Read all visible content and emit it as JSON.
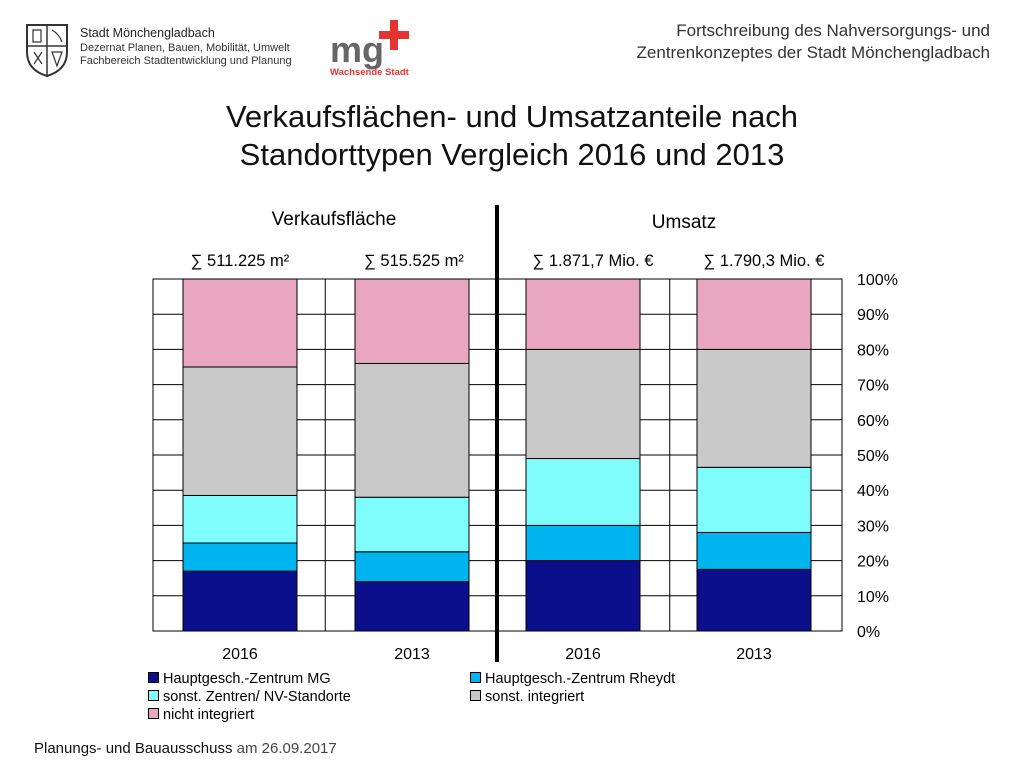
{
  "header": {
    "org_name": "Stadt Mönchengladbach",
    "org_dept": "Dezernat Planen, Bauen, Mobilität, Umwelt",
    "org_division": "Fachbereich Stadtentwicklung und Planung",
    "logo_text": "mg",
    "logo_tagline": "Wachsende Stadt",
    "right_line1": "Fortschreibung des Nahversorgungs- und",
    "right_line2": "Zentrenkonzeptes der Stadt Mönchengladbach"
  },
  "slide_title_line1": "Verkaufsflächen- und Umsatzanteile nach",
  "slide_title_line2": "Standorttypen Vergleich 2016 und 2013",
  "footer": {
    "label": "Planungs- und Bauausschuss",
    "date": "am 26.09.2017"
  },
  "colors": {
    "hauptgesch_mg": "#0c0f8c",
    "hauptgesch_rheydt": "#00b4f0",
    "sonst_zentren": "#7ffcfc",
    "sonst_integriert": "#c8c8c8",
    "nicht_integriert": "#e8a6c0",
    "logo_red": "#e3342f",
    "logo_grey": "#666666"
  },
  "chart_data": {
    "type": "bar",
    "stacked": true,
    "group_labels": [
      "Verkaufsfläche",
      "Umsatz"
    ],
    "totals": [
      "∑ 511.225 m²",
      "∑ 515.525 m²",
      "∑ 1.871,7 Mio. €",
      "∑ 1.790,3 Mio. €"
    ],
    "categories": [
      "2016",
      "2013",
      "2016",
      "2013"
    ],
    "series": [
      {
        "name": "Hauptgesch.-Zentrum MG",
        "values": [
          17,
          14,
          20,
          17.5
        ]
      },
      {
        "name": "Hauptgesch.-Zentrum Rheydt",
        "values": [
          8,
          8.5,
          10,
          10.5
        ]
      },
      {
        "name": "sonst. Zentren/ NV-Standorte",
        "values": [
          13.5,
          15.5,
          19,
          18.5
        ]
      },
      {
        "name": "sonst. integriert",
        "values": [
          36.5,
          38,
          31,
          33.5
        ]
      },
      {
        "name": "nicht integriert",
        "values": [
          25,
          24,
          20,
          20
        ]
      }
    ],
    "y_ticks": [
      "0%",
      "10%",
      "20%",
      "30%",
      "40%",
      "50%",
      "60%",
      "70%",
      "80%",
      "90%",
      "100%"
    ],
    "ylim": [
      0,
      100
    ],
    "y_axis_position": "right",
    "legend_position": "bottom"
  }
}
